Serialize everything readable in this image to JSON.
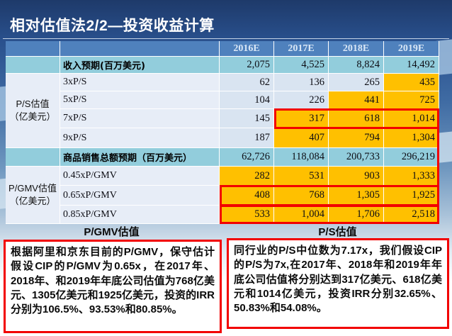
{
  "slide": {
    "title": "相对估值法2/2—投资收益计算"
  },
  "colors": {
    "header_blue": "#4F81BD",
    "teal_row": "#92CDDC",
    "highlight_orange": "#FFC000",
    "cell_blue": "#D9E4F1",
    "label_blue": "#E7EDF7",
    "annotation_red": "#F20000",
    "title_text": "#FFFFFF"
  },
  "table": {
    "year_columns": [
      "2016E",
      "2017E",
      "2018E",
      "2019E"
    ],
    "revenue": {
      "label": "收入预期(百万美元)",
      "values": [
        "2,075",
        "4,525",
        "8,824",
        "14,492"
      ]
    },
    "ps_group_label": "P/S估值\n（亿美元）",
    "ps3": {
      "label": "3xP/S",
      "values": [
        "62",
        "136",
        "265",
        "435"
      ]
    },
    "ps5": {
      "label": "5xP/S",
      "values": [
        "104",
        "226",
        "441",
        "725"
      ]
    },
    "ps7": {
      "label": "7xP/S",
      "values": [
        "145",
        "317",
        "618",
        "1,014"
      ]
    },
    "ps9": {
      "label": "9xP/S",
      "values": [
        "187",
        "407",
        "794",
        "1,304"
      ]
    },
    "gmv": {
      "label": "商品销售总额预期（百万美元）",
      "values": [
        "62,726",
        "118,084",
        "200,733",
        "296,219"
      ]
    },
    "pgmv_group_label": "P/GMV估值\n（亿美元）",
    "pgmv045": {
      "label": "0.45xP/GMV",
      "values": [
        "282",
        "531",
        "903",
        "1,333"
      ]
    },
    "pgmv065": {
      "label": "0.65xP/GMV",
      "values": [
        "408",
        "768",
        "1,305",
        "1,925"
      ]
    },
    "pgmv085": {
      "label": "0.85xP/GMV",
      "values": [
        "533",
        "1,004",
        "1,706",
        "2,518"
      ]
    }
  },
  "sections": {
    "left_heading": "P/GMV估值",
    "right_heading": "P/S估值",
    "left_note": "根据阿里和京东目前的P/GMV，保守估计假设CIP的P/GMV为0.65x，在2017年、2018年、和2019年年底公司估值为768亿美元、1305亿美元和1925亿美元，投资的IRR分别为106.5%、93.53%和80.85%。",
    "right_note": "同行业的P/S中位数为7.17x，我们假设CIP的P/S为7x,在2017年、2018年和2019年年底公司估值将分别达到317亿美元、618亿美元和1014亿美元，投资IRR分别32.65%、50.83%和54.08%。"
  }
}
